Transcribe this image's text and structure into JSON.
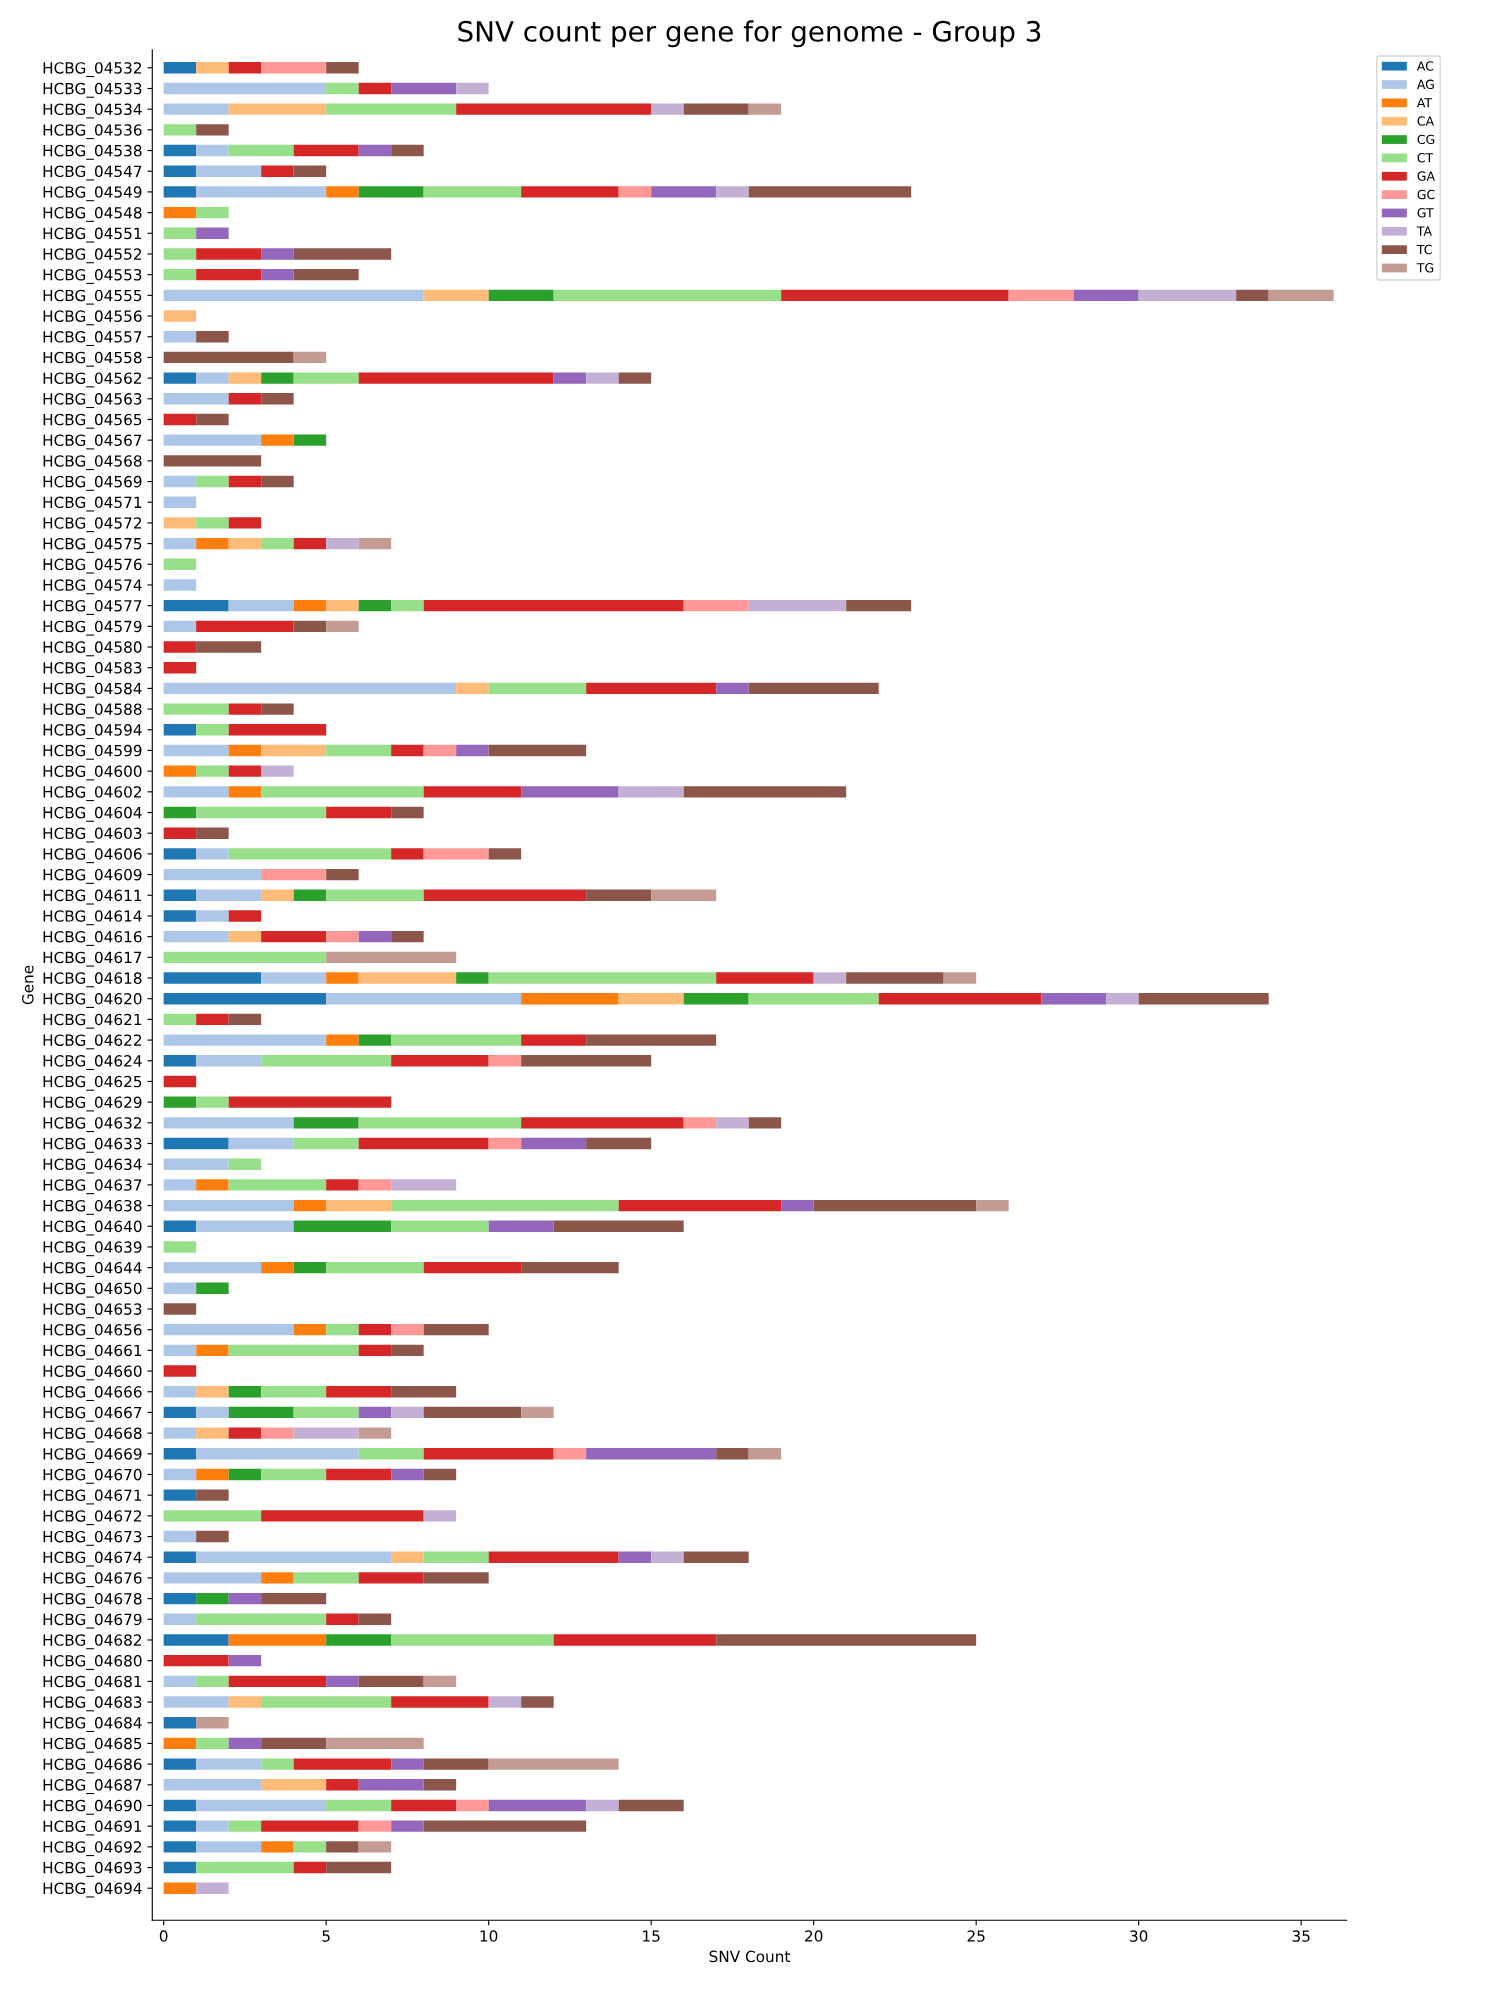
{
  "chart_data": {
    "type": "bar",
    "orientation": "horizontal",
    "stacked": true,
    "title": "SNV count per gene for genome - Group 3",
    "xlabel": "SNV Count",
    "ylabel": "Gene",
    "categories": [
      "HCBG_04532",
      "HCBG_04533",
      "HCBG_04534",
      "HCBG_04536",
      "HCBG_04538",
      "HCBG_04547",
      "HCBG_04549",
      "HCBG_04548",
      "HCBG_04551",
      "HCBG_04552",
      "HCBG_04553",
      "HCBG_04555",
      "HCBG_04556",
      "HCBG_04557",
      "HCBG_04558",
      "HCBG_04562",
      "HCBG_04563",
      "HCBG_04565",
      "HCBG_04567",
      "HCBG_04568",
      "HCBG_04569",
      "HCBG_04571",
      "HCBG_04572",
      "HCBG_04575",
      "HCBG_04576",
      "HCBG_04574",
      "HCBG_04577",
      "HCBG_04579",
      "HCBG_04580",
      "HCBG_04583",
      "HCBG_04584",
      "HCBG_04588",
      "HCBG_04594",
      "HCBG_04599",
      "HCBG_04600",
      "HCBG_04602",
      "HCBG_04604",
      "HCBG_04603",
      "HCBG_04606",
      "HCBG_04609",
      "HCBG_04611",
      "HCBG_04614",
      "HCBG_04616",
      "HCBG_04617",
      "HCBG_04618",
      "HCBG_04620",
      "HCBG_04621",
      "HCBG_04622",
      "HCBG_04624",
      "HCBG_04625",
      "HCBG_04629",
      "HCBG_04632",
      "HCBG_04633",
      "HCBG_04634",
      "HCBG_04637",
      "HCBG_04638",
      "HCBG_04640",
      "HCBG_04639",
      "HCBG_04644",
      "HCBG_04650",
      "HCBG_04653",
      "HCBG_04656",
      "HCBG_04661",
      "HCBG_04660",
      "HCBG_04666",
      "HCBG_04667",
      "HCBG_04668",
      "HCBG_04669",
      "HCBG_04670",
      "HCBG_04671",
      "HCBG_04672",
      "HCBG_04673",
      "HCBG_04674",
      "HCBG_04676",
      "HCBG_04678",
      "HCBG_04679",
      "HCBG_04682",
      "HCBG_04680",
      "HCBG_04681",
      "HCBG_04683",
      "HCBG_04684",
      "HCBG_04685",
      "HCBG_04686",
      "HCBG_04687",
      "HCBG_04690",
      "HCBG_04691",
      "HCBG_04692",
      "HCBG_04693",
      "HCBG_04694"
    ],
    "series": [
      {
        "name": "AC",
        "color": "#1f77b4",
        "values": [
          1,
          0,
          0,
          0,
          1,
          1,
          1,
          0,
          0,
          0,
          0,
          0,
          0,
          0,
          0,
          1,
          0,
          0,
          0,
          0,
          0,
          0,
          0,
          0,
          0,
          0,
          2,
          0,
          0,
          0,
          0,
          0,
          1,
          0,
          0,
          0,
          0,
          0,
          1,
          0,
          1,
          1,
          0,
          0,
          3,
          5,
          0,
          0,
          1,
          0,
          0,
          0,
          2,
          0,
          0,
          0,
          1,
          0,
          0,
          0,
          0,
          0,
          0,
          0,
          0,
          1,
          0,
          1,
          0,
          1,
          0,
          0,
          1,
          0,
          1,
          0,
          2,
          0,
          0,
          0,
          1,
          0,
          1,
          0,
          1,
          1,
          1,
          1,
          0
        ]
      },
      {
        "name": "AG",
        "color": "#aec7e8",
        "values": [
          0,
          5,
          2,
          0,
          1,
          2,
          4,
          0,
          0,
          0,
          0,
          8,
          0,
          1,
          0,
          1,
          2,
          0,
          3,
          0,
          1,
          1,
          0,
          1,
          0,
          1,
          2,
          1,
          0,
          0,
          9,
          0,
          0,
          2,
          0,
          2,
          0,
          0,
          1,
          3,
          2,
          1,
          2,
          0,
          2,
          6,
          0,
          5,
          2,
          0,
          0,
          4,
          2,
          2,
          1,
          4,
          3,
          0,
          3,
          1,
          0,
          4,
          1,
          0,
          1,
          1,
          1,
          5,
          1,
          0,
          0,
          1,
          6,
          3,
          0,
          1,
          0,
          0,
          1,
          2,
          0,
          0,
          2,
          3,
          4,
          1,
          2,
          0,
          0
        ]
      },
      {
        "name": "AT",
        "color": "#ff7f0e",
        "values": [
          0,
          0,
          0,
          0,
          0,
          0,
          1,
          1,
          0,
          0,
          0,
          0,
          0,
          0,
          0,
          0,
          0,
          0,
          1,
          0,
          0,
          0,
          0,
          1,
          0,
          0,
          1,
          0,
          0,
          0,
          0,
          0,
          0,
          1,
          1,
          1,
          0,
          0,
          0,
          0,
          0,
          0,
          0,
          0,
          1,
          3,
          0,
          1,
          0,
          0,
          0,
          0,
          0,
          0,
          1,
          1,
          0,
          0,
          1,
          0,
          0,
          1,
          1,
          0,
          0,
          0,
          0,
          0,
          1,
          0,
          0,
          0,
          0,
          1,
          0,
          0,
          3,
          0,
          0,
          0,
          0,
          1,
          0,
          0,
          0,
          0,
          1,
          0,
          1
        ]
      },
      {
        "name": "CA",
        "color": "#ffbb78",
        "values": [
          1,
          0,
          3,
          0,
          0,
          0,
          0,
          0,
          0,
          0,
          0,
          2,
          1,
          0,
          0,
          1,
          0,
          0,
          0,
          0,
          0,
          0,
          1,
          1,
          0,
          0,
          1,
          0,
          0,
          0,
          1,
          0,
          0,
          2,
          0,
          0,
          0,
          0,
          0,
          0,
          1,
          0,
          1,
          0,
          3,
          2,
          0,
          0,
          0,
          0,
          0,
          0,
          0,
          0,
          0,
          2,
          0,
          0,
          0,
          0,
          0,
          0,
          0,
          0,
          1,
          0,
          1,
          0,
          0,
          0,
          0,
          0,
          1,
          0,
          0,
          0,
          0,
          0,
          0,
          1,
          0,
          0,
          0,
          2,
          0,
          0,
          0,
          0,
          0
        ]
      },
      {
        "name": "CG",
        "color": "#2ca02c",
        "values": [
          0,
          0,
          0,
          0,
          0,
          0,
          2,
          0,
          0,
          0,
          0,
          2,
          0,
          0,
          0,
          1,
          0,
          0,
          1,
          0,
          0,
          0,
          0,
          0,
          0,
          0,
          1,
          0,
          0,
          0,
          0,
          0,
          0,
          0,
          0,
          0,
          1,
          0,
          0,
          0,
          1,
          0,
          0,
          0,
          1,
          2,
          0,
          1,
          0,
          0,
          1,
          2,
          0,
          0,
          0,
          0,
          3,
          0,
          1,
          1,
          0,
          0,
          0,
          0,
          1,
          2,
          0,
          0,
          1,
          0,
          0,
          0,
          0,
          0,
          1,
          0,
          2,
          0,
          0,
          0,
          0,
          0,
          0,
          0,
          0,
          0,
          0,
          0,
          0
        ]
      },
      {
        "name": "CT",
        "color": "#98df8a",
        "values": [
          0,
          1,
          4,
          1,
          2,
          0,
          3,
          1,
          1,
          1,
          1,
          7,
          0,
          0,
          0,
          2,
          0,
          0,
          0,
          0,
          1,
          0,
          1,
          1,
          1,
          0,
          1,
          0,
          0,
          0,
          3,
          2,
          1,
          2,
          1,
          5,
          4,
          0,
          5,
          0,
          3,
          0,
          0,
          5,
          7,
          4,
          1,
          4,
          4,
          0,
          1,
          5,
          2,
          1,
          3,
          7,
          3,
          1,
          3,
          0,
          0,
          1,
          4,
          0,
          2,
          2,
          0,
          2,
          2,
          0,
          3,
          0,
          2,
          2,
          0,
          4,
          5,
          0,
          1,
          4,
          0,
          1,
          1,
          0,
          2,
          1,
          1,
          3,
          0
        ]
      },
      {
        "name": "GA",
        "color": "#d62728",
        "values": [
          1,
          1,
          6,
          0,
          2,
          1,
          3,
          0,
          0,
          2,
          2,
          7,
          0,
          0,
          0,
          6,
          1,
          1,
          0,
          0,
          1,
          0,
          1,
          1,
          0,
          0,
          8,
          3,
          1,
          1,
          4,
          1,
          3,
          1,
          1,
          3,
          2,
          1,
          1,
          0,
          5,
          1,
          2,
          0,
          3,
          5,
          1,
          2,
          3,
          1,
          5,
          5,
          4,
          0,
          1,
          5,
          0,
          0,
          3,
          0,
          0,
          1,
          1,
          1,
          2,
          0,
          1,
          4,
          2,
          0,
          5,
          0,
          4,
          2,
          0,
          1,
          5,
          2,
          3,
          3,
          0,
          0,
          3,
          1,
          2,
          3,
          0,
          1,
          0
        ]
      },
      {
        "name": "GC",
        "color": "#ff9896",
        "values": [
          2,
          0,
          0,
          0,
          0,
          0,
          1,
          0,
          0,
          0,
          0,
          2,
          0,
          0,
          0,
          0,
          0,
          0,
          0,
          0,
          0,
          0,
          0,
          0,
          0,
          0,
          2,
          0,
          0,
          0,
          0,
          0,
          0,
          1,
          0,
          0,
          0,
          0,
          2,
          2,
          0,
          0,
          1,
          0,
          0,
          0,
          0,
          0,
          1,
          0,
          0,
          1,
          1,
          0,
          1,
          0,
          0,
          0,
          0,
          0,
          0,
          1,
          0,
          0,
          0,
          0,
          1,
          1,
          0,
          0,
          0,
          0,
          0,
          0,
          0,
          0,
          0,
          0,
          0,
          0,
          0,
          0,
          0,
          0,
          1,
          1,
          0,
          0,
          0
        ]
      },
      {
        "name": "GT",
        "color": "#9467bd",
        "values": [
          0,
          2,
          0,
          0,
          1,
          0,
          2,
          0,
          1,
          1,
          1,
          2,
          0,
          0,
          0,
          1,
          0,
          0,
          0,
          0,
          0,
          0,
          0,
          0,
          0,
          0,
          0,
          0,
          0,
          0,
          1,
          0,
          0,
          1,
          0,
          3,
          0,
          0,
          0,
          0,
          0,
          0,
          1,
          0,
          0,
          2,
          0,
          0,
          0,
          0,
          0,
          0,
          2,
          0,
          0,
          1,
          2,
          0,
          0,
          0,
          0,
          0,
          0,
          0,
          0,
          1,
          0,
          4,
          1,
          0,
          0,
          0,
          1,
          0,
          1,
          0,
          0,
          1,
          1,
          0,
          0,
          1,
          1,
          2,
          3,
          1,
          0,
          0,
          0
        ]
      },
      {
        "name": "TA",
        "color": "#c5b0d5",
        "values": [
          0,
          1,
          1,
          0,
          0,
          0,
          1,
          0,
          0,
          0,
          0,
          3,
          0,
          0,
          0,
          1,
          0,
          0,
          0,
          0,
          0,
          0,
          0,
          1,
          0,
          0,
          3,
          0,
          0,
          0,
          0,
          0,
          0,
          0,
          1,
          2,
          0,
          0,
          0,
          0,
          0,
          0,
          0,
          0,
          1,
          1,
          0,
          0,
          0,
          0,
          0,
          1,
          0,
          0,
          2,
          0,
          0,
          0,
          0,
          0,
          0,
          0,
          0,
          0,
          0,
          1,
          2,
          0,
          0,
          0,
          1,
          0,
          1,
          0,
          0,
          0,
          0,
          0,
          0,
          1,
          0,
          0,
          0,
          0,
          1,
          0,
          0,
          0,
          1
        ]
      },
      {
        "name": "TC",
        "color": "#8c564b",
        "values": [
          1,
          0,
          2,
          1,
          1,
          1,
          5,
          0,
          0,
          3,
          2,
          1,
          0,
          1,
          4,
          1,
          1,
          1,
          0,
          3,
          1,
          0,
          0,
          0,
          0,
          0,
          2,
          1,
          2,
          0,
          4,
          1,
          0,
          3,
          0,
          5,
          1,
          1,
          1,
          1,
          2,
          0,
          1,
          0,
          3,
          4,
          1,
          4,
          4,
          0,
          0,
          1,
          2,
          0,
          0,
          5,
          4,
          0,
          3,
          0,
          1,
          2,
          1,
          0,
          2,
          3,
          0,
          1,
          1,
          1,
          0,
          1,
          2,
          2,
          2,
          1,
          8,
          0,
          2,
          1,
          0,
          2,
          2,
          1,
          2,
          5,
          1,
          2,
          0
        ]
      },
      {
        "name": "TG",
        "color": "#c49c94",
        "values": [
          0,
          0,
          1,
          0,
          0,
          0,
          0,
          0,
          0,
          0,
          0,
          2,
          0,
          0,
          1,
          0,
          0,
          0,
          0,
          0,
          0,
          0,
          0,
          1,
          0,
          0,
          0,
          1,
          0,
          0,
          0,
          0,
          0,
          0,
          0,
          0,
          0,
          0,
          0,
          0,
          2,
          0,
          0,
          4,
          1,
          0,
          0,
          0,
          0,
          0,
          0,
          0,
          0,
          0,
          0,
          1,
          0,
          0,
          0,
          0,
          0,
          0,
          0,
          0,
          0,
          1,
          1,
          1,
          0,
          0,
          0,
          0,
          0,
          0,
          0,
          0,
          0,
          0,
          1,
          0,
          1,
          3,
          4,
          0,
          0,
          0,
          1,
          0,
          0
        ]
      }
    ],
    "xlim": [
      -0.35,
      36.4
    ],
    "xticks": [
      0,
      5,
      10,
      15,
      20,
      25,
      30,
      35
    ],
    "grid": false,
    "legend": "top right"
  }
}
